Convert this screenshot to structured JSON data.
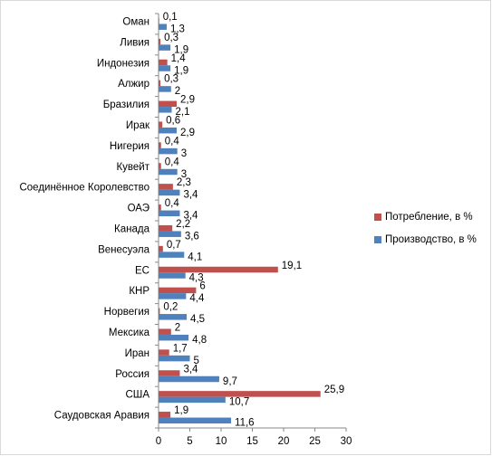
{
  "chart_data": {
    "type": "hbar",
    "categories": [
      "Оман",
      "Ливия",
      "Индонезия",
      "Алжир",
      "Бразилия",
      "Ирак",
      "Нигерия",
      "Кувейт",
      "Соединённое Королевство",
      "ОАЭ",
      "Канада",
      "Венесуэла",
      "ЕС",
      "КНР",
      "Норвегия",
      "Мексика",
      "Иран",
      "Россия",
      "США",
      "Саудовская Аравия"
    ],
    "series": [
      {
        "name": "Потребление, в  %",
        "color": "#c0504d",
        "values": [
          0.1,
          0.3,
          1.4,
          0.3,
          2.9,
          0.6,
          0.4,
          0.4,
          2.3,
          0.4,
          2.2,
          0.7,
          19.1,
          6,
          0.2,
          2,
          1.7,
          3.4,
          25.9,
          1.9
        ],
        "value_labels": [
          "0,1",
          "0,3",
          "1,4",
          "0,3",
          "2,9",
          "0,6",
          "0,4",
          "0,4",
          "2,3",
          "0,4",
          "2,2",
          "0,7",
          "19,1",
          "6",
          "0,2",
          "2",
          "1,7",
          "3,4",
          "25,9",
          "1,9"
        ]
      },
      {
        "name": "Производство, в %",
        "color": "#4f81bd",
        "values": [
          1.3,
          1.9,
          1.9,
          2,
          2.1,
          2.9,
          3,
          3,
          3.4,
          3.4,
          3.6,
          4.1,
          4.3,
          4.4,
          4.5,
          4.8,
          5,
          9.7,
          10.7,
          11.6
        ],
        "value_labels": [
          "1,3",
          "1,9",
          "1,9",
          "2",
          "2,1",
          "2,9",
          "3",
          "3",
          "3,4",
          "3,4",
          "3,6",
          "4,1",
          "4,3",
          "4,4",
          "4,5",
          "4,8",
          "5",
          "9,7",
          "10,7",
          "11,6"
        ]
      }
    ],
    "xlim": [
      0,
      30
    ],
    "xticks": [
      0,
      5,
      10,
      15,
      20,
      25,
      30
    ],
    "legend": "right"
  }
}
